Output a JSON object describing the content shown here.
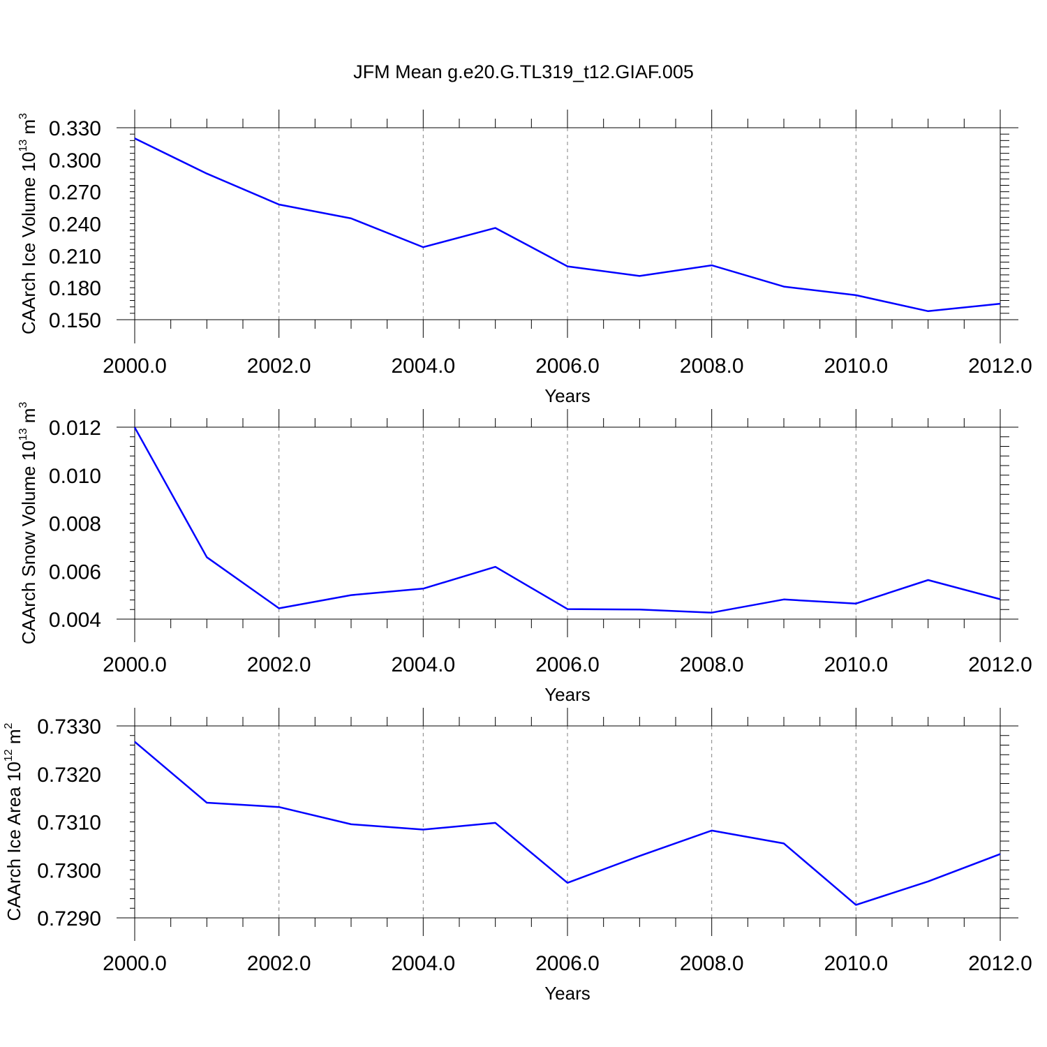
{
  "title": "JFM Mean g.e20.G.TL319_t12.GIAF.005",
  "chart_data": [
    {
      "type": "line",
      "xlabel": "Years",
      "ylabel": "CAArch Ice Volume 10",
      "ylabel_exp": "13",
      "ylabel_unit": " m",
      "ylabel_unit_exp": "3",
      "xlim": [
        2000,
        2012
      ],
      "ylim": [
        0.15,
        0.33
      ],
      "xticks": [
        "2000.0",
        "2002.0",
        "2004.0",
        "2006.0",
        "2008.0",
        "2010.0",
        "2012.0"
      ],
      "xtick_values": [
        2000,
        2002,
        2004,
        2006,
        2008,
        2010,
        2012
      ],
      "yticks": [
        "0.150",
        "0.180",
        "0.210",
        "0.240",
        "0.270",
        "0.300",
        "0.330"
      ],
      "ytick_values": [
        0.15,
        0.18,
        0.21,
        0.24,
        0.27,
        0.3,
        0.33
      ],
      "grid": "vertical dashed at major x ticks",
      "series": [
        {
          "color": "#0000ff",
          "x": [
            2000,
            2001,
            2002,
            2003,
            2004,
            2005,
            2006,
            2007,
            2008,
            2009,
            2010,
            2011,
            2012
          ],
          "y": [
            0.32,
            0.287,
            0.258,
            0.245,
            0.218,
            0.236,
            0.2,
            0.191,
            0.201,
            0.181,
            0.173,
            0.158,
            0.165
          ]
        }
      ]
    },
    {
      "type": "line",
      "xlabel": "Years",
      "ylabel": "CAArch Snow Volume 10",
      "ylabel_exp": "13",
      "ylabel_unit": " m",
      "ylabel_unit_exp": "3",
      "xlim": [
        2000,
        2012
      ],
      "ylim": [
        0.004,
        0.012
      ],
      "xticks": [
        "2000.0",
        "2002.0",
        "2004.0",
        "2006.0",
        "2008.0",
        "2010.0",
        "2012.0"
      ],
      "xtick_values": [
        2000,
        2002,
        2004,
        2006,
        2008,
        2010,
        2012
      ],
      "yticks": [
        "0.004",
        "0.006",
        "0.008",
        "0.010",
        "0.012"
      ],
      "ytick_values": [
        0.004,
        0.006,
        0.008,
        0.01,
        0.012
      ],
      "grid": "vertical dashed at major x ticks",
      "series": [
        {
          "color": "#0000ff",
          "x": [
            2000,
            2001,
            2002,
            2003,
            2004,
            2005,
            2006,
            2007,
            2008,
            2009,
            2010,
            2011,
            2012
          ],
          "y": [
            0.01199,
            0.00658,
            0.00445,
            0.005,
            0.00527,
            0.00618,
            0.00442,
            0.0044,
            0.00427,
            0.00482,
            0.00465,
            0.00563,
            0.00483
          ]
        }
      ]
    },
    {
      "type": "line",
      "xlabel": "Years",
      "ylabel": "CAArch Ice Area 10",
      "ylabel_exp": "12",
      "ylabel_unit": " m",
      "ylabel_unit_exp": "2",
      "xlim": [
        2000,
        2012
      ],
      "ylim": [
        0.729,
        0.733
      ],
      "xticks": [
        "2000.0",
        "2002.0",
        "2004.0",
        "2006.0",
        "2008.0",
        "2010.0",
        "2012.0"
      ],
      "xtick_values": [
        2000,
        2002,
        2004,
        2006,
        2008,
        2010,
        2012
      ],
      "yticks": [
        "0.7290",
        "0.7300",
        "0.7310",
        "0.7320",
        "0.7330"
      ],
      "ytick_values": [
        0.729,
        0.73,
        0.731,
        0.732,
        0.733
      ],
      "grid": "vertical dashed at major x ticks",
      "series": [
        {
          "color": "#0000ff",
          "x": [
            2000,
            2001,
            2002,
            2003,
            2004,
            2005,
            2006,
            2007,
            2008,
            2009,
            2010,
            2011,
            2012
          ],
          "y": [
            0.73267,
            0.7314,
            0.73131,
            0.73095,
            0.73084,
            0.73098,
            0.72973,
            0.73029,
            0.73082,
            0.73055,
            0.72927,
            0.72976,
            0.73033
          ]
        }
      ]
    }
  ]
}
